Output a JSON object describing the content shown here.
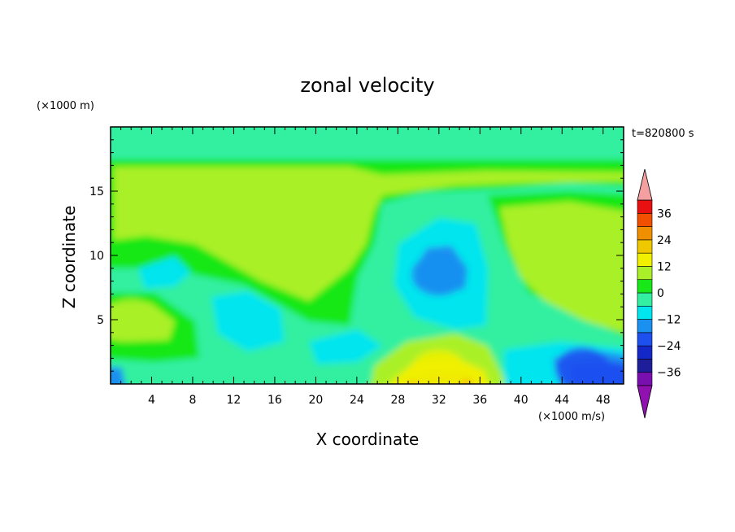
{
  "chart_data": {
    "type": "heatmap",
    "title": "zonal velocity",
    "xlabel": "X coordinate",
    "ylabel": "Z coordinate",
    "x_unit": "(×1000 m/s)",
    "y_unit": "(×1000 m)",
    "time_label": "t=820800 s",
    "xlim": [
      0,
      50
    ],
    "ylim": [
      0,
      20
    ],
    "x_ticks": [
      4,
      8,
      12,
      16,
      20,
      24,
      28,
      32,
      36,
      40,
      44,
      48
    ],
    "y_ticks": [
      5,
      10,
      15
    ],
    "colorbar": {
      "levels": [
        -42,
        -36,
        -30,
        -24,
        -18,
        -12,
        -6,
        0,
        6,
        12,
        18,
        24,
        30,
        36,
        42
      ],
      "tick_labels": [
        -36,
        -24,
        -12,
        0,
        12,
        24,
        36
      ],
      "colors": [
        "#7a0fb0",
        "#1e1e9a",
        "#1428c8",
        "#1e50f0",
        "#1a90f0",
        "#00e5ee",
        "#32f0a0",
        "#18e818",
        "#aaf028",
        "#f0f000",
        "#f0c800",
        "#f09000",
        "#f05000",
        "#e81010"
      ],
      "over_color": "#f5a0a0",
      "under_color": "#9010b0"
    },
    "features": [
      {
        "x": 32,
        "z": 8.5,
        "value": -15
      },
      {
        "x": 44,
        "z": 10.0,
        "value": 10
      },
      {
        "x": 32,
        "z": 1.0,
        "value": 14
      },
      {
        "x": 46,
        "z": 1.2,
        "value": -20
      },
      {
        "x": 2,
        "z": 5.0,
        "value": 8
      }
    ]
  }
}
